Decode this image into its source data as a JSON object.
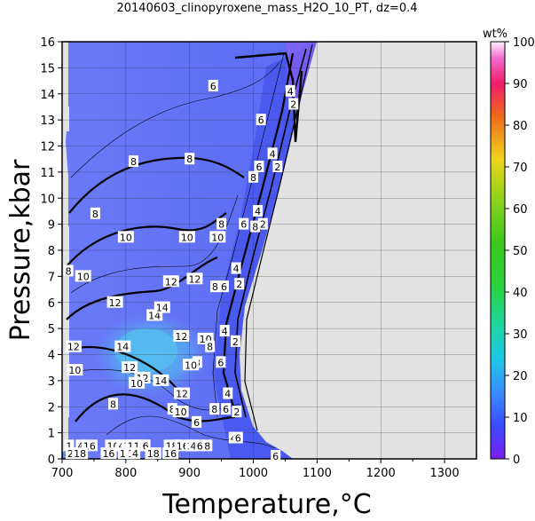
{
  "chart_data": {
    "type": "heatmap",
    "title": "20140603_clinopyroxene_mass_H2O_10_PT, dz=0.4",
    "xlabel": "Temperature,°C",
    "ylabel": "Pressure,kbar",
    "xlim": [
      700,
      1350
    ],
    "ylim": [
      0,
      16
    ],
    "x_ticks": [
      700,
      800,
      900,
      1000,
      1100,
      1200,
      1300
    ],
    "y_ticks": [
      0,
      1,
      2,
      3,
      4,
      5,
      6,
      7,
      8,
      9,
      10,
      11,
      12,
      13,
      14,
      15,
      16
    ],
    "grid": true,
    "colorbar": {
      "label": "wt%",
      "range": [
        0,
        100
      ],
      "ticks": [
        0,
        10,
        20,
        30,
        40,
        50,
        60,
        70,
        80,
        90,
        100
      ]
    },
    "contour_labels": [
      {
        "text": "6",
        "x": 937,
        "y": 14.3
      },
      {
        "text": "4",
        "x": 1058,
        "y": 14.1
      },
      {
        "text": "2",
        "x": 1063,
        "y": 13.6
      },
      {
        "text": "6",
        "x": 1012,
        "y": 13.0
      },
      {
        "text": "8",
        "x": 812,
        "y": 11.4
      },
      {
        "text": "8",
        "x": 900,
        "y": 11.5
      },
      {
        "text": "8",
        "x": 1000,
        "y": 10.8
      },
      {
        "text": "6",
        "x": 1009,
        "y": 11.2
      },
      {
        "text": "4",
        "x": 1030,
        "y": 11.7
      },
      {
        "text": "2",
        "x": 1038,
        "y": 11.2
      },
      {
        "text": "8",
        "x": 752,
        "y": 9.4
      },
      {
        "text": "4",
        "x": 1007,
        "y": 9.5
      },
      {
        "text": "2",
        "x": 1015,
        "y": 9.0
      },
      {
        "text": "8",
        "x": 1003,
        "y": 8.9
      },
      {
        "text": "6",
        "x": 985,
        "y": 9.0
      },
      {
        "text": "8",
        "x": 950,
        "y": 9.0
      },
      {
        "text": "10",
        "x": 800,
        "y": 8.5
      },
      {
        "text": "10",
        "x": 896,
        "y": 8.5
      },
      {
        "text": "10",
        "x": 944,
        "y": 8.5
      },
      {
        "text": "8",
        "x": 710,
        "y": 7.2
      },
      {
        "text": "10",
        "x": 733,
        "y": 7.0
      },
      {
        "text": "12",
        "x": 871,
        "y": 6.8
      },
      {
        "text": "12",
        "x": 908,
        "y": 6.9
      },
      {
        "text": "6",
        "x": 954,
        "y": 6.6
      },
      {
        "text": "8",
        "x": 940,
        "y": 6.6
      },
      {
        "text": "4",
        "x": 973,
        "y": 7.3
      },
      {
        "text": "2",
        "x": 978,
        "y": 6.7
      },
      {
        "text": "12",
        "x": 783,
        "y": 6.0
      },
      {
        "text": "14",
        "x": 845,
        "y": 5.5
      },
      {
        "text": "14",
        "x": 857,
        "y": 5.8
      },
      {
        "text": "12",
        "x": 887,
        "y": 4.7
      },
      {
        "text": "10",
        "x": 925,
        "y": 4.6
      },
      {
        "text": "8",
        "x": 932,
        "y": 4.3
      },
      {
        "text": "4",
        "x": 955,
        "y": 4.9
      },
      {
        "text": "2",
        "x": 972,
        "y": 4.5
      },
      {
        "text": "12",
        "x": 718,
        "y": 4.3
      },
      {
        "text": "14",
        "x": 795,
        "y": 4.3
      },
      {
        "text": "8",
        "x": 912,
        "y": 3.7
      },
      {
        "text": "10",
        "x": 902,
        "y": 3.6
      },
      {
        "text": "6",
        "x": 949,
        "y": 3.7
      },
      {
        "text": "12",
        "x": 806,
        "y": 3.5
      },
      {
        "text": "10",
        "x": 720,
        "y": 3.4
      },
      {
        "text": "12",
        "x": 826,
        "y": 3.1
      },
      {
        "text": "10",
        "x": 817,
        "y": 2.9
      },
      {
        "text": "14",
        "x": 855,
        "y": 3.0
      },
      {
        "text": "12",
        "x": 888,
        "y": 2.5
      },
      {
        "text": "4",
        "x": 960,
        "y": 2.5
      },
      {
        "text": "8",
        "x": 780,
        "y": 2.1
      },
      {
        "text": "8",
        "x": 873,
        "y": 1.9
      },
      {
        "text": "10",
        "x": 886,
        "y": 1.8
      },
      {
        "text": "8",
        "x": 939,
        "y": 1.9
      },
      {
        "text": "6",
        "x": 957,
        "y": 1.9
      },
      {
        "text": "2",
        "x": 974,
        "y": 1.8
      },
      {
        "text": "6",
        "x": 911,
        "y": 1.4
      },
      {
        "text": "4",
        "x": 969,
        "y": 0.8
      },
      {
        "text": "6",
        "x": 976,
        "y": 0.8
      },
      {
        "text": "1",
        "x": 711,
        "y": 0.5
      },
      {
        "text": "4",
        "x": 729,
        "y": 0.5
      },
      {
        "text": "16",
        "x": 743,
        "y": 0.5
      },
      {
        "text": "10",
        "x": 780,
        "y": 0.5
      },
      {
        "text": "4",
        "x": 793,
        "y": 0.5
      },
      {
        "text": "18",
        "x": 806,
        "y": 0.5
      },
      {
        "text": "14",
        "x": 812,
        "y": 0.5
      },
      {
        "text": "18",
        "x": 822,
        "y": 0.5
      },
      {
        "text": "6",
        "x": 831,
        "y": 0.5
      },
      {
        "text": "18",
        "x": 872,
        "y": 0.5
      },
      {
        "text": "16",
        "x": 889,
        "y": 0.5
      },
      {
        "text": "2",
        "x": 901,
        "y": 0.5
      },
      {
        "text": "4",
        "x": 906,
        "y": 0.5
      },
      {
        "text": "6",
        "x": 916,
        "y": 0.5
      },
      {
        "text": "8",
        "x": 928,
        "y": 0.5
      },
      {
        "text": "2",
        "x": 713,
        "y": 0.2
      },
      {
        "text": "18",
        "x": 728,
        "y": 0.2
      },
      {
        "text": "16",
        "x": 773,
        "y": 0.2
      },
      {
        "text": "18",
        "x": 800,
        "y": 0.2
      },
      {
        "text": "1",
        "x": 808,
        "y": 0.2
      },
      {
        "text": "4",
        "x": 815,
        "y": 0.2
      },
      {
        "text": "6",
        "x": 838,
        "y": 0.2
      },
      {
        "text": "18",
        "x": 843,
        "y": 0.2
      },
      {
        "text": "16",
        "x": 870,
        "y": 0.2
      },
      {
        "text": "6",
        "x": 1035,
        "y": 0.1
      }
    ]
  }
}
